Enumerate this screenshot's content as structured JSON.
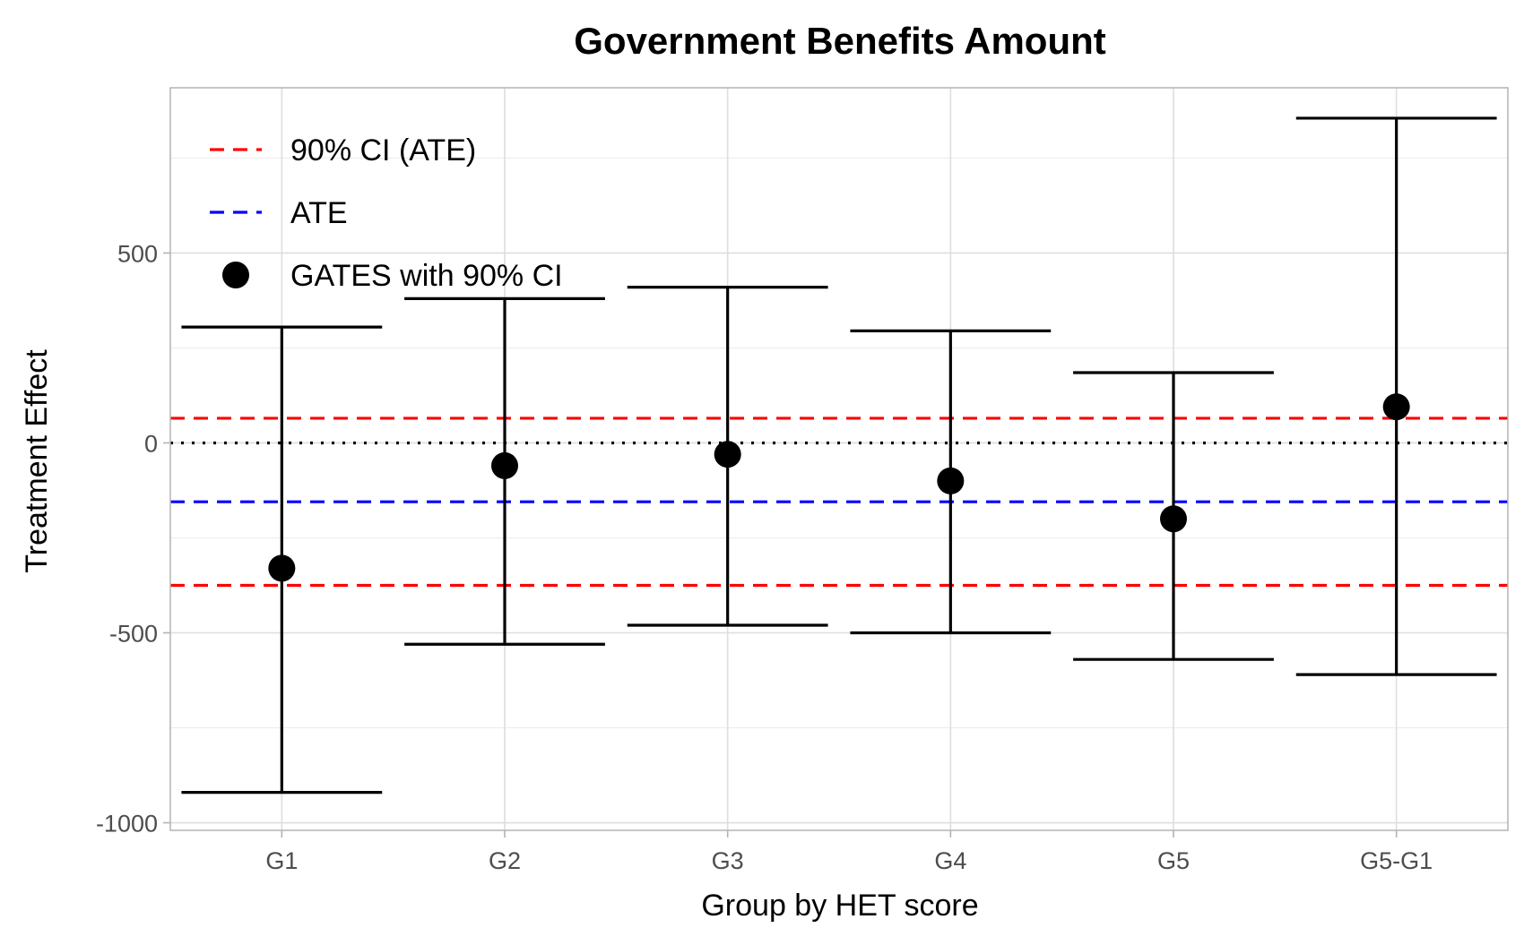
{
  "chart_data": {
    "type": "scatter",
    "title": "Government Benefits Amount",
    "xlabel": "Group by HET score",
    "ylabel": "Treatment Effect",
    "categories": [
      "G1",
      "G2",
      "G3",
      "G4",
      "G5",
      "G5-G1"
    ],
    "y_ticks": [
      500,
      0,
      -500,
      -1000
    ],
    "y_tick_labels": [
      "500",
      "0",
      "-500",
      "-1000"
    ],
    "ylim": [
      -1020,
      935
    ],
    "grid": true,
    "legend_position": "top-left",
    "series": [
      {
        "name": "GATES with 90% CI",
        "color": "#000000",
        "estimate": [
          -330,
          -60,
          -30,
          -100,
          -200,
          95
        ],
        "ci_low": [
          -920,
          -530,
          -480,
          -500,
          -570,
          -610
        ],
        "ci_high": [
          305,
          380,
          410,
          295,
          185,
          855
        ]
      }
    ],
    "reference_lines": [
      {
        "name": "90% CI (ATE)",
        "color": "#ff0000",
        "style": "dashed",
        "values": [
          65,
          -375
        ]
      },
      {
        "name": "ATE",
        "color": "#0000ff",
        "style": "dashed",
        "values": [
          -155
        ]
      },
      {
        "name": "",
        "color": "#000000",
        "style": "dotted",
        "values": [
          0
        ]
      }
    ],
    "legend": [
      {
        "label": "90% CI (ATE)",
        "symbol": "dash",
        "color": "#ff0000"
      },
      {
        "label": "ATE",
        "symbol": "dash",
        "color": "#0000ff"
      },
      {
        "label": "GATES with 90% CI",
        "symbol": "dot",
        "color": "#000000"
      }
    ]
  }
}
